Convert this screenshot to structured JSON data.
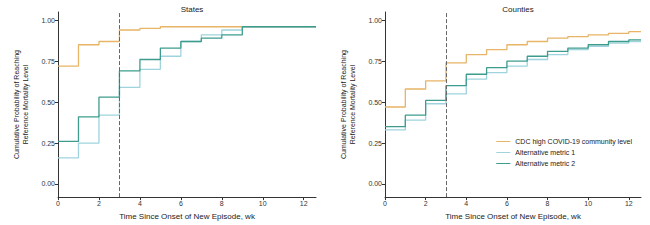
{
  "chart_data": [
    {
      "type": "line",
      "line_style": "step",
      "title": "States",
      "xlabel": "Time Since Onset of New Episode, wk",
      "ylabel": "Cumulative Probability of Reaching\nReference Mortality Level",
      "x": [
        0,
        1,
        2,
        3,
        4,
        5,
        6,
        7,
        8,
        9,
        10,
        11,
        12,
        12.6
      ],
      "reference_x": 3,
      "xlim": [
        0,
        12.6
      ],
      "xticks": [
        0,
        2,
        4,
        6,
        8,
        10,
        12
      ],
      "ylim": [
        -0.08,
        1.05
      ],
      "yticks": [
        {
          "value": 0,
          "label": "0.00"
        },
        {
          "value": 0.25,
          "label": "0.25"
        },
        {
          "value": 0.5,
          "label": "0.50"
        },
        {
          "value": 0.75,
          "label": "0.75"
        },
        {
          "value": 1,
          "label": "1.00"
        }
      ],
      "grid": false,
      "series": [
        {
          "name": "CDC high COVID-19 community level",
          "color": "#e8b466",
          "values": [
            0.72,
            0.85,
            0.87,
            0.94,
            0.95,
            0.96,
            0.96,
            0.96,
            0.96,
            0.96,
            0.96,
            0.96,
            0.96,
            0.96
          ]
        },
        {
          "name": "Alternative metric 1",
          "color": "#9fd3dd",
          "values": [
            0.16,
            0.25,
            0.42,
            0.59,
            0.7,
            0.78,
            0.87,
            0.91,
            0.94,
            0.96,
            0.96,
            0.96,
            0.96,
            0.96
          ]
        },
        {
          "name": "Alternative metric 2",
          "color": "#3e9c8e",
          "values": [
            0.26,
            0.41,
            0.53,
            0.69,
            0.76,
            0.83,
            0.87,
            0.89,
            0.91,
            0.96,
            0.96,
            0.96,
            0.96,
            0.96
          ]
        }
      ]
    },
    {
      "type": "line",
      "line_style": "step",
      "title": "Counties",
      "xlabel": "Time Since Onset of New Episode, wk",
      "ylabel": "Cumulative Probability of Reaching\nReference Mortality Level",
      "x": [
        0,
        1,
        2,
        3,
        4,
        5,
        6,
        7,
        8,
        9,
        10,
        11,
        12,
        12.6
      ],
      "reference_x": 3,
      "xlim": [
        0,
        12.6
      ],
      "xticks": [
        0,
        2,
        4,
        6,
        8,
        10,
        12
      ],
      "ylim": [
        -0.08,
        1.05
      ],
      "yticks": [
        {
          "value": 0,
          "label": "0.00"
        },
        {
          "value": 0.25,
          "label": "0.25"
        },
        {
          "value": 0.5,
          "label": "0.50"
        },
        {
          "value": 0.75,
          "label": "0.75"
        },
        {
          "value": 1,
          "label": "1.00"
        }
      ],
      "grid": false,
      "legend": "lower right",
      "series": [
        {
          "name": "CDC high COVID-19 community level",
          "color": "#e8b466",
          "values": [
            0.47,
            0.58,
            0.63,
            0.74,
            0.79,
            0.82,
            0.85,
            0.87,
            0.89,
            0.9,
            0.91,
            0.92,
            0.93,
            0.93
          ]
        },
        {
          "name": "Alternative metric 1",
          "color": "#9fd3dd",
          "values": [
            0.33,
            0.39,
            0.49,
            0.55,
            0.64,
            0.68,
            0.72,
            0.76,
            0.79,
            0.82,
            0.84,
            0.86,
            0.87,
            0.87
          ]
        },
        {
          "name": "Alternative metric 2",
          "color": "#3e9c8e",
          "values": [
            0.35,
            0.42,
            0.51,
            0.6,
            0.67,
            0.71,
            0.75,
            0.78,
            0.81,
            0.83,
            0.85,
            0.87,
            0.88,
            0.88
          ]
        }
      ]
    }
  ]
}
